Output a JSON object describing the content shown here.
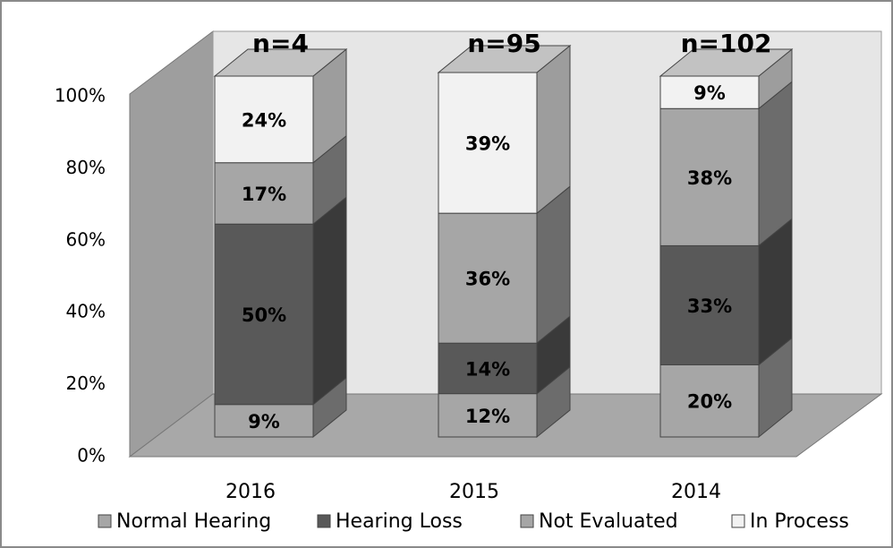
{
  "chart_data": {
    "type": "bar3d_stacked",
    "categories": [
      "2016",
      "2015",
      "2014"
    ],
    "series": [
      {
        "name": "Normal Hearing",
        "color": "#a6a6a6",
        "values": [
          9,
          12,
          20
        ],
        "value_labels": [
          "9%",
          "12%",
          "20%"
        ]
      },
      {
        "name": "Hearing Loss",
        "color": "#595959",
        "values": [
          50,
          14,
          33
        ],
        "value_labels": [
          "50%",
          "14%",
          "33%"
        ]
      },
      {
        "name": "Not Evaluated",
        "color": "#a6a6a6",
        "values": [
          17,
          36,
          38
        ],
        "value_labels": [
          "17%",
          "36%",
          "38%"
        ]
      },
      {
        "name": "In Process",
        "color": "#f2f2f2",
        "values": [
          24,
          39,
          9
        ],
        "value_labels": [
          "24%",
          "39%",
          "9%"
        ]
      }
    ],
    "annotations": [
      "n=4",
      "n=95",
      "n=102"
    ],
    "ylim": [
      0,
      100
    ],
    "yticks": [
      {
        "value": 0,
        "label": "0%"
      },
      {
        "value": 20,
        "label": "20%"
      },
      {
        "value": 40,
        "label": "40%"
      },
      {
        "value": 60,
        "label": "60%"
      },
      {
        "value": 80,
        "label": "80%"
      },
      {
        "value": 100,
        "label": "100%"
      }
    ],
    "legend": "bottom"
  }
}
